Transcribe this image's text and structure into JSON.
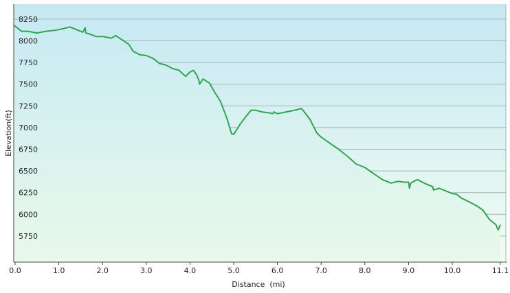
{
  "chart_data": {
    "type": "area",
    "title": "",
    "xlabel": "Distance  (mi)",
    "ylabel": "Elevation(ft)",
    "xlim": [
      0,
      11.12
    ],
    "ylim": [
      5500,
      8500
    ],
    "x_ticks": [
      "0.0",
      "1.0",
      "2.0",
      "3.0",
      "4.0",
      "5.0",
      "6.0",
      "7.0",
      "8.0",
      "9.0",
      "10.0",
      "11.1"
    ],
    "y_ticks": [
      "8250",
      "8000",
      "7750",
      "7500",
      "7250",
      "7000",
      "6750",
      "6500",
      "6250",
      "6000",
      "5750"
    ],
    "grid": true,
    "legend": "none",
    "colors": {
      "line": "#2aa84a",
      "fill_top": "#c9ebf3",
      "fill_bottom": "#e9f9ea",
      "background_top": "#c4e8f2",
      "background_bottom": "#f2fcf2",
      "grid": "#9fb3bb",
      "axis": "#444444"
    },
    "series": [
      {
        "x": [
          0.0,
          0.15,
          0.3,
          0.5,
          0.7,
          0.9,
          1.1,
          1.25,
          1.4,
          1.55,
          1.6,
          1.62,
          1.7,
          1.85,
          2.0,
          2.1,
          2.2,
          2.3,
          2.45,
          2.6,
          2.7,
          2.85,
          3.0,
          3.15,
          3.3,
          3.45,
          3.6,
          3.75,
          3.9,
          4.0,
          4.08,
          4.15,
          4.2,
          4.22,
          4.3,
          4.45,
          4.55,
          4.7,
          4.85,
          4.95,
          5.0,
          5.15,
          5.3,
          5.4,
          5.5,
          5.65,
          5.8,
          5.9,
          5.92,
          6.0,
          6.2,
          6.4,
          6.55,
          6.6,
          6.75,
          6.9,
          7.0,
          7.2,
          7.4,
          7.6,
          7.8,
          8.0,
          8.2,
          8.4,
          8.6,
          8.75,
          8.9,
          9.0,
          9.02,
          9.05,
          9.2,
          9.4,
          9.55,
          9.57,
          9.7,
          9.9,
          10.0,
          10.1,
          10.2,
          10.4,
          10.55,
          10.7,
          10.85,
          11.0,
          11.05,
          11.1
        ],
        "y": [
          8180,
          8110,
          8110,
          8090,
          8110,
          8120,
          8140,
          8160,
          8130,
          8100,
          8150,
          8090,
          8080,
          8050,
          8050,
          8040,
          8030,
          8060,
          8010,
          7960,
          7880,
          7840,
          7830,
          7800,
          7740,
          7720,
          7680,
          7660,
          7590,
          7640,
          7660,
          7610,
          7550,
          7500,
          7560,
          7510,
          7420,
          7300,
          7100,
          6930,
          6920,
          7040,
          7140,
          7200,
          7200,
          7180,
          7170,
          7160,
          7180,
          7160,
          7180,
          7200,
          7220,
          7190,
          7090,
          6940,
          6890,
          6820,
          6750,
          6670,
          6580,
          6540,
          6470,
          6400,
          6360,
          6380,
          6370,
          6370,
          6300,
          6360,
          6400,
          6350,
          6320,
          6280,
          6300,
          6260,
          6240,
          6230,
          6190,
          6140,
          6100,
          6050,
          5940,
          5880,
          5820,
          5880
        ]
      }
    ]
  }
}
